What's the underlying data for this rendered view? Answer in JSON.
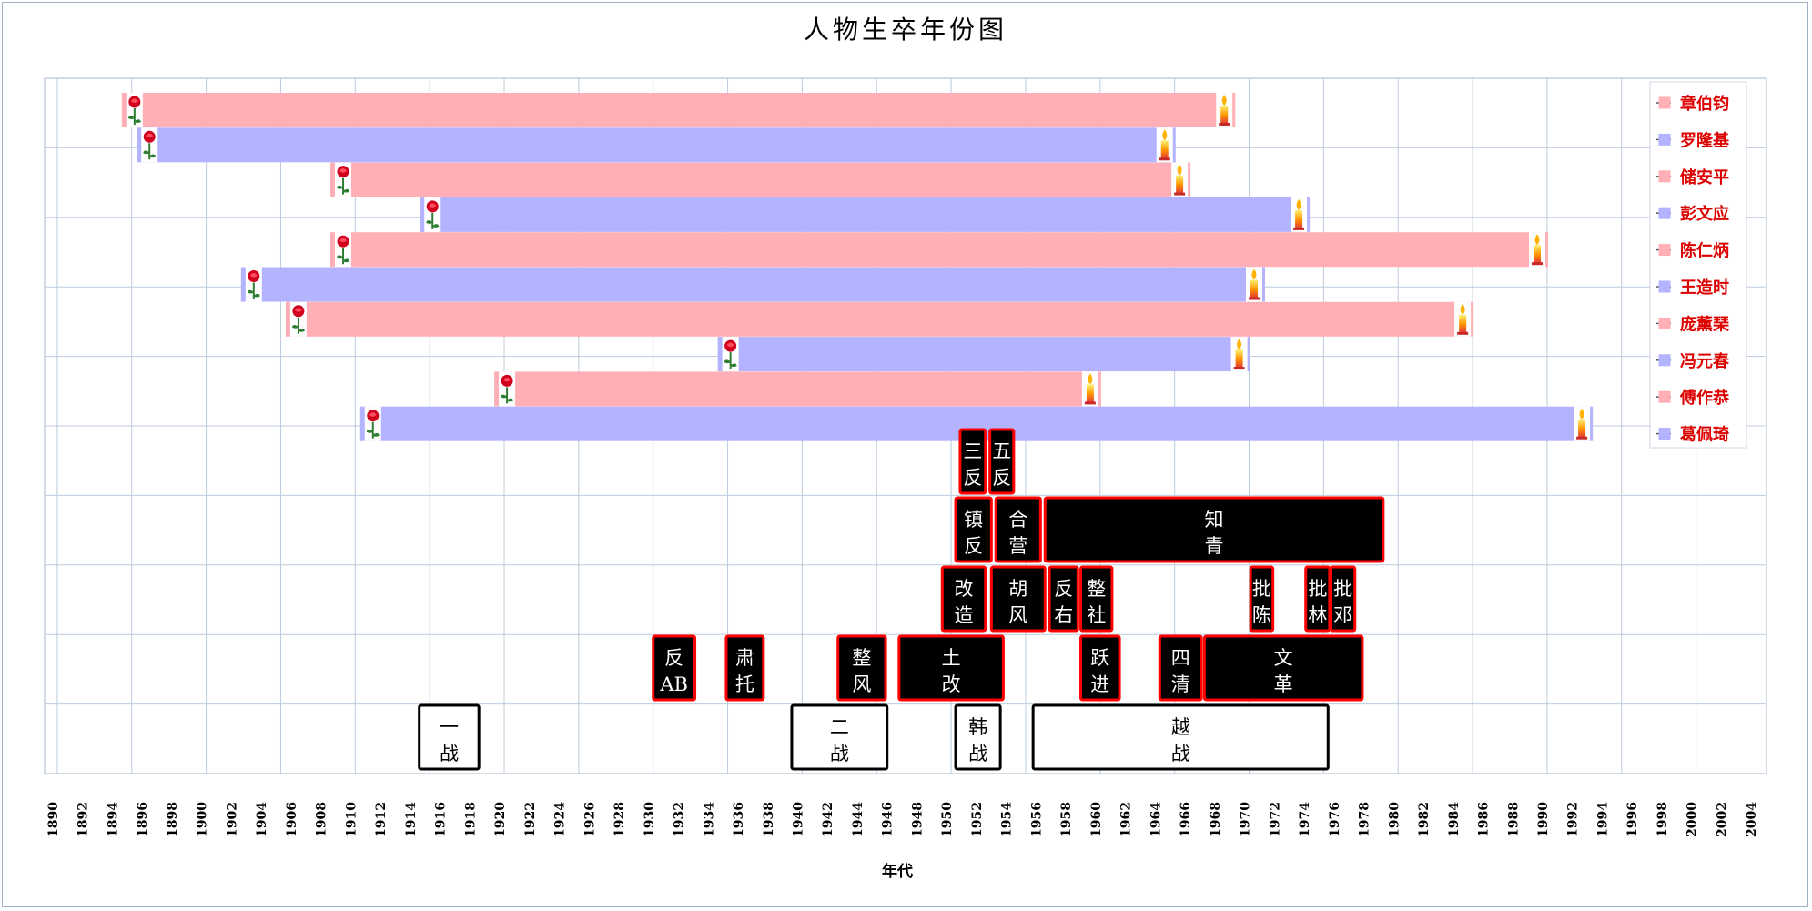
{
  "chart_data": {
    "type": "bar",
    "title": "人物生卒年份图",
    "xlabel": "年代",
    "ylabel": "",
    "xlim": [
      1890,
      2006
    ],
    "x_ticks": [
      "1890",
      "1892",
      "1894",
      "1896",
      "1898",
      "1900",
      "1902",
      "1904",
      "1906",
      "1908",
      "1910",
      "1912",
      "1914",
      "1916",
      "1918",
      "1920",
      "1922",
      "1924",
      "1926",
      "1928",
      "1930",
      "1932",
      "1934",
      "1936",
      "1938",
      "1940",
      "1942",
      "1944",
      "1946",
      "1948",
      "1950",
      "1952",
      "1954",
      "1956",
      "1958",
      "1960",
      "1962",
      "1964",
      "1966",
      "1968",
      "1970",
      "1972",
      "1974",
      "1976",
      "1978",
      "1980",
      "1982",
      "1984",
      "1986",
      "1988",
      "1990",
      "1992",
      "1994",
      "1996",
      "1998",
      "2000",
      "2002",
      "2004"
    ],
    "grid": true,
    "legend_position": "right",
    "colors": {
      "pink": "#ffafb5",
      "blue": "#b3b3ff",
      "event_fill": "#000000",
      "event_border": "#ff0000",
      "legend_text": "#dd0000",
      "war_border": "#000000"
    },
    "series": [
      {
        "name": "章伯钧",
        "start": 1895,
        "end": 1969,
        "color": "pink"
      },
      {
        "name": "罗隆基",
        "start": 1896,
        "end": 1965,
        "color": "blue"
      },
      {
        "name": "储安平",
        "start": 1909,
        "end": 1966,
        "color": "pink"
      },
      {
        "name": "彭文应",
        "start": 1915,
        "end": 1974,
        "color": "blue"
      },
      {
        "name": "陈仁炳",
        "start": 1909,
        "end": 1990,
        "color": "pink"
      },
      {
        "name": "王造时",
        "start": 1903,
        "end": 1971,
        "color": "blue"
      },
      {
        "name": "庞薰琹",
        "start": 1906,
        "end": 1985,
        "color": "pink"
      },
      {
        "name": "冯元春",
        "start": 1935,
        "end": 1970,
        "color": "blue"
      },
      {
        "name": "傅作恭",
        "start": 1920,
        "end": 1960,
        "color": "pink"
      },
      {
        "name": "葛佩琦",
        "start": 1911,
        "end": 1993,
        "color": "blue"
      }
    ],
    "events": [
      {
        "row": 0,
        "line1": "三",
        "line2": "反",
        "start": 1950.9,
        "end": 1952.6,
        "style": "movement"
      },
      {
        "row": 0,
        "line1": "五",
        "line2": "反",
        "start": 1952.9,
        "end": 1954.5,
        "style": "movement"
      },
      {
        "row": 1,
        "line1": "镇",
        "line2": "反",
        "start": 1950.6,
        "end": 1953.0,
        "style": "movement"
      },
      {
        "row": 1,
        "line1": "合",
        "line2": "营",
        "start": 1953.3,
        "end": 1956.3,
        "style": "movement"
      },
      {
        "row": 1,
        "line1": "知",
        "line2": "青",
        "start": 1956.6,
        "end": 1979.3,
        "style": "movement"
      },
      {
        "row": 2,
        "line1": "改",
        "line2": "造",
        "start": 1949.7,
        "end": 1952.6,
        "style": "movement"
      },
      {
        "row": 2,
        "line1": "胡",
        "line2": "风",
        "start": 1953.0,
        "end": 1956.6,
        "style": "movement"
      },
      {
        "row": 2,
        "line1": "反",
        "line2": "右",
        "start": 1956.9,
        "end": 1958.8,
        "style": "movement"
      },
      {
        "row": 2,
        "line1": "整",
        "line2": "社",
        "start": 1959.0,
        "end": 1961.1,
        "style": "movement"
      },
      {
        "row": 2,
        "line1": "批",
        "line2": "陈",
        "start": 1970.4,
        "end": 1971.9,
        "style": "movement"
      },
      {
        "row": 2,
        "line1": "批",
        "line2": "林",
        "start": 1974.1,
        "end": 1975.7,
        "style": "movement"
      },
      {
        "row": 2,
        "line1": "批",
        "line2": "邓",
        "start": 1975.8,
        "end": 1977.4,
        "style": "movement"
      },
      {
        "row": 3,
        "line1": "反",
        "line2": "AB",
        "start": 1930.3,
        "end": 1933.1,
        "style": "movement"
      },
      {
        "row": 3,
        "line1": "肃",
        "line2": "托",
        "start": 1935.2,
        "end": 1937.7,
        "style": "movement"
      },
      {
        "row": 3,
        "line1": "整",
        "line2": "风",
        "start": 1942.7,
        "end": 1945.9,
        "style": "movement"
      },
      {
        "row": 3,
        "line1": "土",
        "line2": "改",
        "start": 1946.8,
        "end": 1953.8,
        "style": "movement"
      },
      {
        "row": 3,
        "line1": "跃",
        "line2": "进",
        "start": 1959.0,
        "end": 1961.6,
        "style": "movement"
      },
      {
        "row": 3,
        "line1": "四",
        "line2": "清",
        "start": 1964.3,
        "end": 1967.1,
        "style": "movement"
      },
      {
        "row": 3,
        "line1": "文",
        "line2": "革",
        "start": 1967.3,
        "end": 1977.9,
        "style": "movement"
      },
      {
        "row": 4,
        "line1": "一",
        "line2": "战",
        "start": 1914.6,
        "end": 1918.6,
        "style": "war"
      },
      {
        "row": 4,
        "line1": "二",
        "line2": "战",
        "start": 1939.6,
        "end": 1946.0,
        "style": "war"
      },
      {
        "row": 4,
        "line1": "韩",
        "line2": "战",
        "start": 1950.6,
        "end": 1953.6,
        "style": "war"
      },
      {
        "row": 4,
        "line1": "越",
        "line2": "战",
        "start": 1955.8,
        "end": 1975.6,
        "style": "war"
      }
    ]
  }
}
